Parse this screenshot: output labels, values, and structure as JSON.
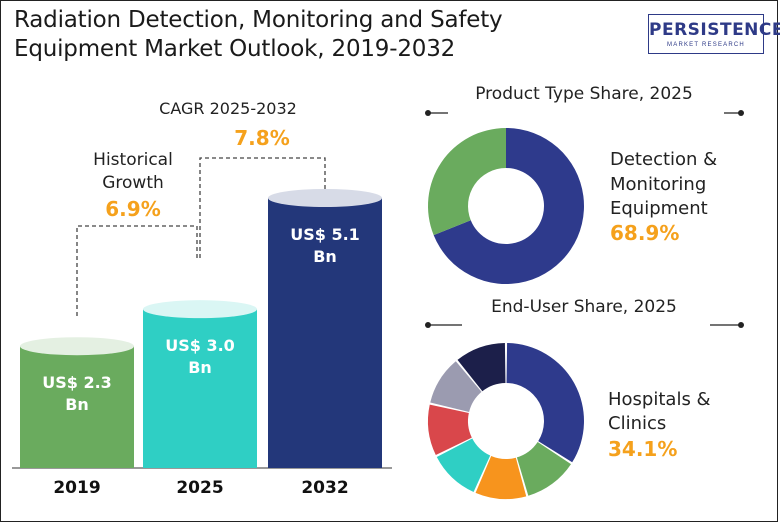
{
  "header": {
    "title_line1": "Radiation Detection, Monitoring and Safety",
    "title_line2": "Equipment Market  Outlook, 2019-2032",
    "logo_text": "PERSISTENCE",
    "logo_subtext": "MARKET RESEARCH"
  },
  "annotations": {
    "cagr_label": "CAGR 2025-2032",
    "cagr_value": "7.8%",
    "historical_label_line1": "Historical",
    "historical_label_line2": "Growth",
    "historical_value": "6.9%"
  },
  "product_type": {
    "title": "Product Type  Share, 2025",
    "label_line1": "Detection &",
    "label_line2": "Monitoring",
    "label_line3": "Equipment",
    "value_label": "68.9%"
  },
  "end_user": {
    "title": "End-User Share, 2025",
    "label_line1": "Hospitals &",
    "label_line2": "Clinics",
    "value_label": "34.1%"
  },
  "colors": {
    "bar_2019": "#6aab5e",
    "bar_2025": "#2fcfc4",
    "bar_2032": "#23377a",
    "accent_orange": "#f5a11c",
    "donut_navy": "#2e3a8c",
    "donut_green": "#6aab5e"
  },
  "chart_data": [
    {
      "type": "bar",
      "categories": [
        "2019",
        "2025",
        "2032"
      ],
      "values": [
        2.3,
        3.0,
        5.1
      ],
      "value_labels_line1": [
        "US$ 2.3",
        "US$ 3.0",
        "US$ 5.1"
      ],
      "value_labels_line2": [
        "Bn",
        "Bn",
        "Bn"
      ],
      "unit": "US$ Bn",
      "colors": [
        "#6aab5e",
        "#2fcfc4",
        "#23377a"
      ]
    },
    {
      "type": "pie",
      "title": "Product Type  Share, 2025",
      "slices": [
        {
          "label": "Detection & Monitoring Equipment",
          "value": 68.9,
          "color": "#2e3a8c"
        },
        {
          "value": 31.1,
          "color": "#6aab5e"
        }
      ]
    },
    {
      "type": "pie",
      "title": "End-User Share, 2025",
      "slices": [
        {
          "label": "Hospitals & Clinics",
          "value": 34.1,
          "color": "#2e3a8c"
        },
        {
          "value": 11.5,
          "color": "#6aab5e"
        },
        {
          "value": 11.0,
          "color": "#f7941d"
        },
        {
          "value": 11.0,
          "color": "#2fcfc4"
        },
        {
          "value": 11.0,
          "color": "#d9474b"
        },
        {
          "value": 10.5,
          "color": "#9b9bb0"
        },
        {
          "value": 10.9,
          "color": "#1c1f4a"
        }
      ]
    }
  ]
}
